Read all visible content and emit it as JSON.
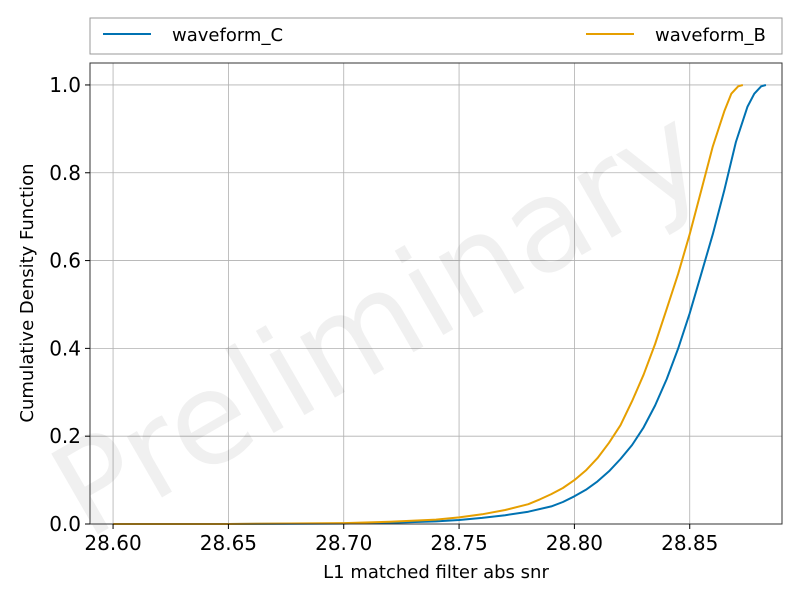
{
  "chart_data": {
    "type": "line",
    "title": "",
    "xlabel": "L1 matched filter abs snr",
    "ylabel": "Cumulative Density Function",
    "xlim": [
      28.59,
      28.89
    ],
    "ylim": [
      0.0,
      1.05
    ],
    "xticks": [
      28.6,
      28.65,
      28.7,
      28.75,
      28.8,
      28.85
    ],
    "xtick_labels": [
      "28.60",
      "28.65",
      "28.70",
      "28.75",
      "28.80",
      "28.85"
    ],
    "yticks": [
      0.0,
      0.2,
      0.4,
      0.6,
      0.8,
      1.0
    ],
    "ytick_labels": [
      "0.0",
      "0.2",
      "0.4",
      "0.6",
      "0.8",
      "1.0"
    ],
    "grid": true,
    "legend_position": "top (above plot, horizontal)",
    "watermark": "Preliminary",
    "series": [
      {
        "name": "waveform_C",
        "color": "#0072b2",
        "x": [
          28.6,
          28.65,
          28.7,
          28.72,
          28.74,
          28.75,
          28.76,
          28.77,
          28.78,
          28.79,
          28.795,
          28.8,
          28.805,
          28.81,
          28.815,
          28.82,
          28.825,
          28.83,
          28.835,
          28.84,
          28.845,
          28.85,
          28.855,
          28.86,
          28.865,
          28.87,
          28.875,
          28.878,
          28.881,
          28.883
        ],
        "y": [
          0.0,
          0.0,
          0.001,
          0.003,
          0.006,
          0.009,
          0.014,
          0.02,
          0.028,
          0.04,
          0.05,
          0.063,
          0.078,
          0.097,
          0.12,
          0.148,
          0.18,
          0.22,
          0.27,
          0.33,
          0.4,
          0.48,
          0.57,
          0.66,
          0.76,
          0.87,
          0.95,
          0.98,
          0.997,
          1.0
        ]
      },
      {
        "name": "waveform_B",
        "color": "#e69f00",
        "x": [
          28.6,
          28.65,
          28.7,
          28.72,
          28.74,
          28.75,
          28.76,
          28.77,
          28.78,
          28.785,
          28.79,
          28.795,
          28.8,
          28.805,
          28.81,
          28.815,
          28.82,
          28.825,
          28.83,
          28.835,
          28.84,
          28.845,
          28.85,
          28.855,
          28.86,
          28.865,
          28.868,
          28.871,
          28.873
        ],
        "y": [
          0.0,
          0.0,
          0.002,
          0.005,
          0.01,
          0.015,
          0.022,
          0.032,
          0.045,
          0.056,
          0.068,
          0.082,
          0.1,
          0.122,
          0.15,
          0.185,
          0.225,
          0.28,
          0.34,
          0.41,
          0.49,
          0.57,
          0.66,
          0.76,
          0.86,
          0.94,
          0.98,
          0.997,
          1.0
        ]
      }
    ]
  }
}
